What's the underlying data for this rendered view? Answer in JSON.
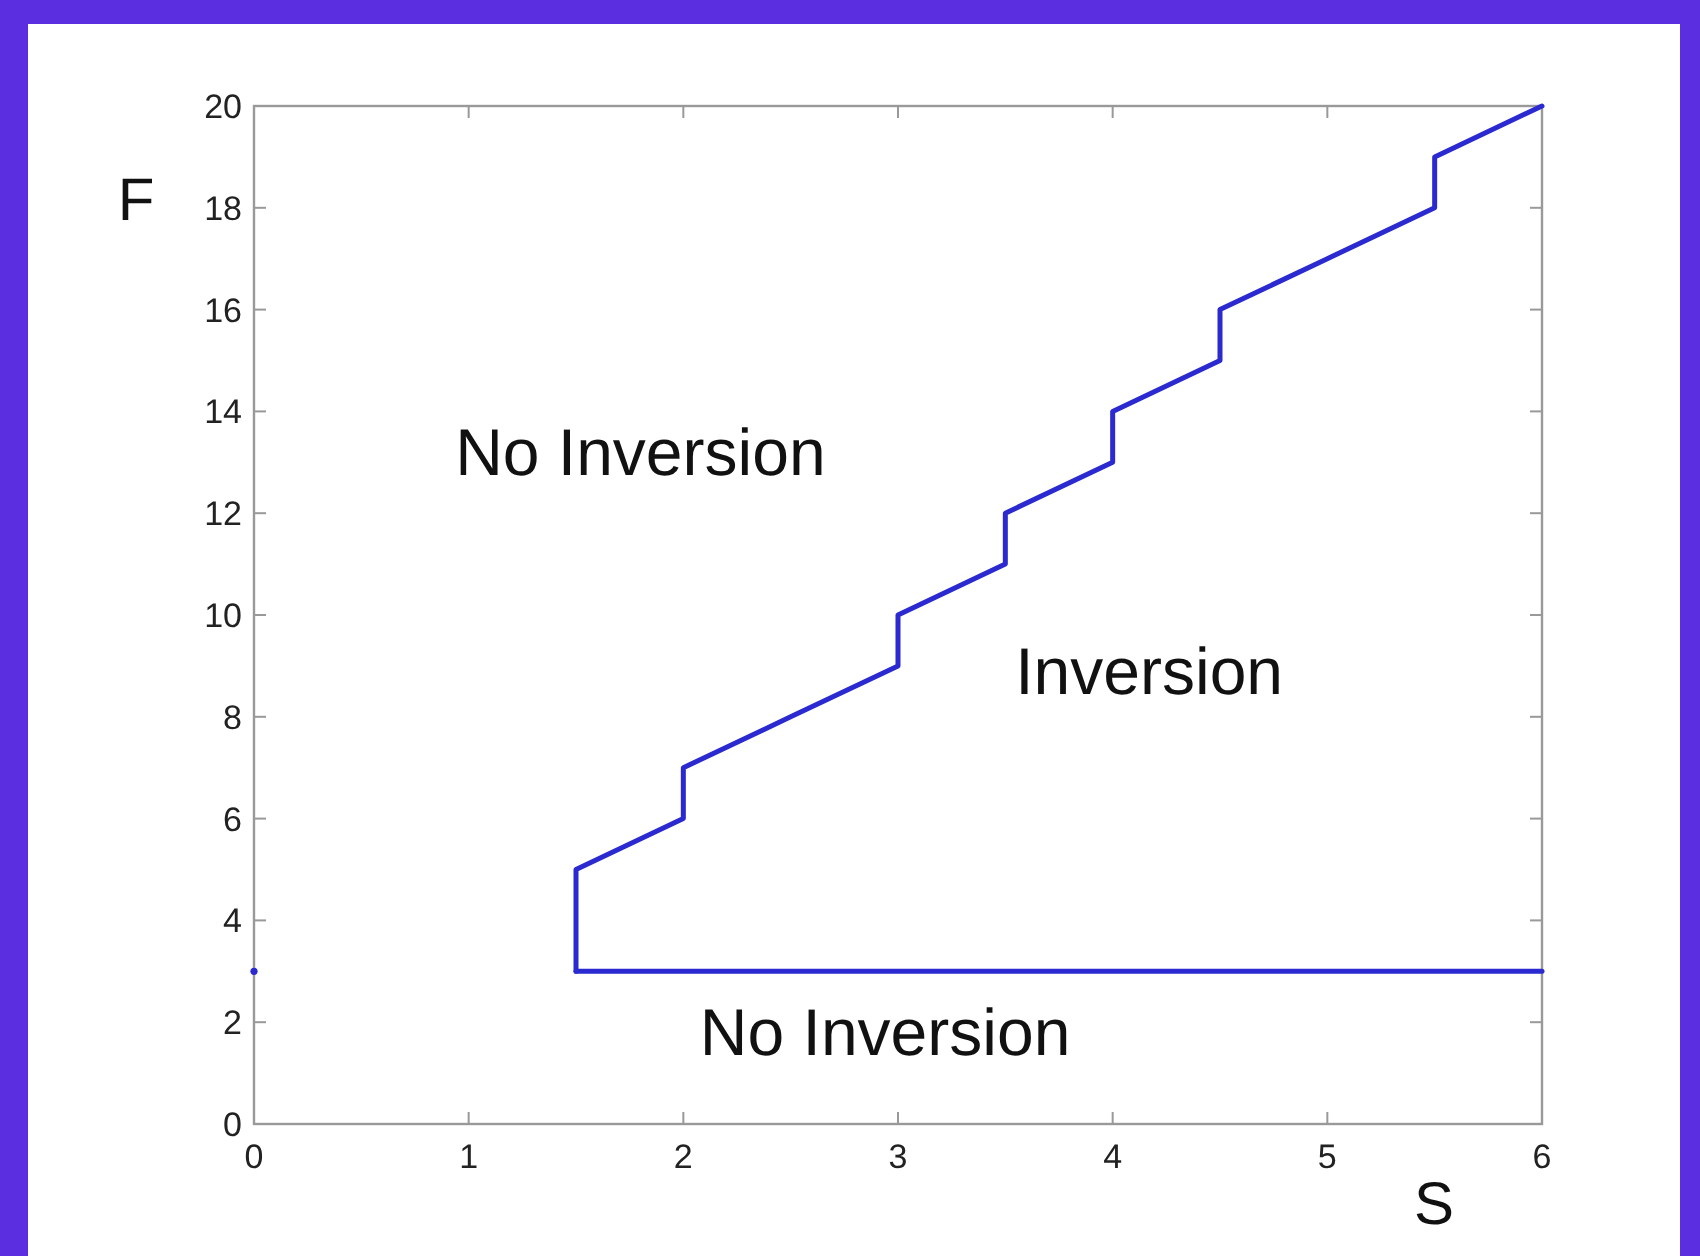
{
  "chart_data": {
    "type": "line",
    "xlabel": "S",
    "ylabel": "F",
    "xlim": [
      0,
      6
    ],
    "ylim": [
      0,
      20
    ],
    "xticks": [
      0,
      1,
      2,
      3,
      4,
      5,
      6
    ],
    "yticks": [
      0,
      2,
      4,
      6,
      8,
      10,
      12,
      14,
      16,
      18,
      20
    ],
    "grid": false,
    "line_style": "solid",
    "series": [
      {
        "color": "#2a2ad0",
        "x": [
          1.5,
          1.5,
          1.5,
          2,
          2,
          2.5,
          3,
          3,
          3.5,
          3.5,
          4,
          4,
          4.5,
          4.5,
          5,
          5.5,
          5.5,
          6
        ],
        "values": [
          3,
          4,
          5,
          6,
          7,
          8,
          9,
          10,
          11,
          12,
          13,
          14,
          15,
          16,
          17,
          18,
          19,
          20
        ]
      },
      {
        "color": "#2a2ad0",
        "x": [
          1.5,
          6
        ],
        "values": [
          3,
          3
        ]
      },
      {
        "type": "scatter",
        "color": "#2a2ad0",
        "x": [
          0
        ],
        "values": [
          3
        ]
      }
    ],
    "annotations": [
      "No Inversion",
      "Inversion",
      "No Inversion"
    ]
  }
}
